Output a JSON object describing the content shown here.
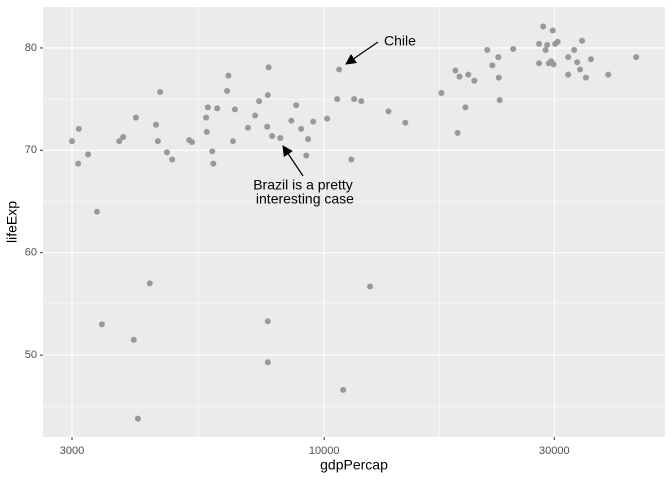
{
  "chart_data": {
    "type": "scatter",
    "x_label": "gdpPercap",
    "y_label": "lifeExp",
    "xscale": "log",
    "grid": true,
    "color": "#999999",
    "xlim": [
      2612,
      50900
    ],
    "ylim": [
      42.0,
      84.0
    ],
    "xticks": [
      3000,
      10000,
      30000
    ],
    "yticks": [
      50,
      60,
      70,
      80
    ],
    "x": [
      3000,
      3100,
      3090,
      3240,
      3380,
      3460,
      3760,
      3830,
      4070,
      4030,
      4110,
      4350,
      4480,
      4570,
      4520,
      4720,
      4840,
      5250,
      5320,
      5690,
      5710,
      5740,
      5860,
      5890,
      6000,
      6290,
      6330,
      6470,
      6530,
      6950,
      7190,
      7330,
      7620,
      7640,
      7670,
      7800,
      8110,
      7640,
      7640,
      8550,
      8750,
      8960,
      9180,
      9260,
      9490,
      10140,
      10640,
      10740,
      10950,
      11380,
      11540,
      11940,
      12450,
      13590,
      14730,
      17500,
      18710,
      18910,
      19080,
      19630,
      19900,
      20480,
      21780,
      22320,
      22970,
      23020,
      23120,
      24660,
      27900,
      27900,
      28450,
      28780,
      29000,
      29220,
      29550,
      29780,
      29900,
      30130,
      30490,
      32060,
      32060,
      32990,
      33460,
      33940,
      34260,
      34900,
      35740,
      38820,
      44360
    ],
    "y": [
      70.9,
      72.1,
      68.7,
      69.6,
      64.0,
      53.0,
      70.9,
      71.3,
      73.2,
      51.5,
      43.8,
      57.0,
      72.5,
      75.7,
      70.9,
      69.8,
      69.1,
      71.0,
      70.8,
      73.2,
      71.8,
      74.2,
      69.9,
      68.7,
      74.1,
      75.8,
      77.3,
      70.9,
      74.0,
      72.2,
      73.4,
      74.8,
      72.3,
      75.4,
      78.1,
      71.4,
      71.2,
      53.3,
      49.3,
      72.9,
      74.4,
      72.1,
      69.5,
      71.1,
      72.8,
      73.1,
      75.0,
      77.9,
      46.6,
      69.1,
      75.0,
      74.8,
      56.7,
      73.8,
      72.7,
      75.6,
      77.8,
      71.7,
      77.2,
      74.2,
      77.4,
      76.8,
      79.8,
      78.3,
      79.1,
      77.1,
      74.9,
      79.9,
      80.4,
      78.5,
      82.1,
      79.8,
      80.3,
      78.5,
      78.7,
      81.7,
      78.4,
      80.4,
      80.6,
      79.1,
      77.4,
      79.8,
      78.6,
      77.9,
      80.7,
      77.1,
      78.9,
      77.4,
      79.1
    ],
    "annotations": [
      {
        "lines": [
          "Chile"
        ]
      },
      {
        "lines": [
          "Brazil is a pretty",
          " interesting case"
        ]
      }
    ]
  }
}
